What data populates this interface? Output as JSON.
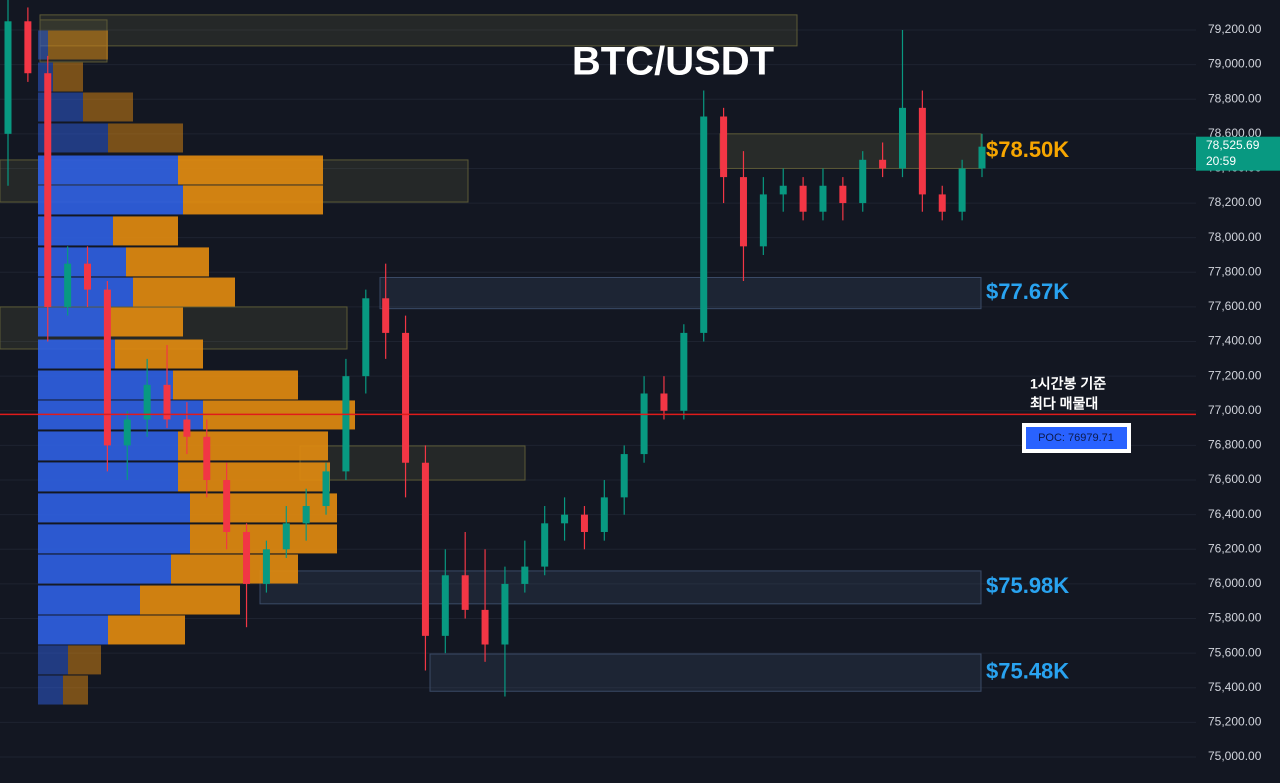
{
  "chart_data": {
    "type": "candlestick",
    "title": "BTC/USDT",
    "open": [
      78600,
      79250,
      78950,
      77600,
      77850,
      77700,
      76800,
      76950,
      77150,
      76950,
      76850,
      76600,
      76300,
      76000,
      76200,
      76350,
      76450,
      76650,
      77200,
      77650,
      77450,
      76700,
      75700,
      76050,
      75850,
      75650,
      76000,
      76100,
      76350,
      76400,
      76300,
      76500,
      76750,
      77100,
      77000,
      77450,
      78700,
      78350,
      77950,
      78250,
      78300,
      78150,
      78300,
      78200,
      78450,
      78400,
      78750,
      78250,
      78150,
      78400
    ],
    "high": [
      79380,
      79330,
      79050,
      77950,
      77950,
      77750,
      77000,
      77300,
      77380,
      77050,
      76950,
      76700,
      76350,
      76250,
      76450,
      76550,
      76700,
      77300,
      77700,
      77850,
      77550,
      76800,
      76200,
      76300,
      76200,
      76100,
      76250,
      76450,
      76500,
      76450,
      76600,
      76800,
      77200,
      77200,
      77500,
      78850,
      78750,
      78500,
      78350,
      78400,
      78350,
      78400,
      78350,
      78500,
      78550,
      79200,
      78850,
      78300,
      78450,
      78600
    ],
    "low": [
      78300,
      78900,
      77400,
      77550,
      77600,
      76650,
      76600,
      76850,
      76900,
      76750,
      76500,
      76200,
      75750,
      75950,
      76150,
      76250,
      76400,
      76600,
      77100,
      77300,
      76500,
      75500,
      75600,
      75800,
      75550,
      75350,
      75950,
      76050,
      76250,
      76200,
      76250,
      76400,
      76700,
      76950,
      76950,
      77400,
      78200,
      77750,
      77900,
      78150,
      78100,
      78100,
      78100,
      78150,
      78350,
      78350,
      78150,
      78100,
      78100,
      78350
    ],
    "close": [
      79250,
      78950,
      77600,
      77850,
      77700,
      76800,
      76950,
      77150,
      76950,
      76850,
      76600,
      76300,
      76000,
      76200,
      76350,
      76450,
      76650,
      77200,
      77650,
      77450,
      76700,
      75700,
      76050,
      75850,
      75650,
      76000,
      76100,
      76350,
      76400,
      76300,
      76500,
      76750,
      77100,
      77000,
      77450,
      78700,
      78350,
      77950,
      78250,
      78300,
      78150,
      78300,
      78200,
      78450,
      78400,
      78750,
      78250,
      78150,
      78400,
      78525.69
    ],
    "up_color": "#089981",
    "down_color": "#f23645",
    "ylim": [
      74850,
      79373
    ],
    "yticks": [
      {
        "value": 75000,
        "label": "75,000.00"
      },
      {
        "value": 75200,
        "label": "75,200.00"
      },
      {
        "value": 75400,
        "label": "75,400.00"
      },
      {
        "value": 75600,
        "label": "75,600.00"
      },
      {
        "value": 75800,
        "label": "75,800.00"
      },
      {
        "value": 76000,
        "label": "76,000.00"
      },
      {
        "value": 76200,
        "label": "76,200.00"
      },
      {
        "value": 76400,
        "label": "76,400.00"
      },
      {
        "value": 76600,
        "label": "76,600.00"
      },
      {
        "value": 76800,
        "label": "76,800.00"
      },
      {
        "value": 77000,
        "label": "77,000.00"
      },
      {
        "value": 77200,
        "label": "77,200.00"
      },
      {
        "value": 77400,
        "label": "77,400.00"
      },
      {
        "value": 77600,
        "label": "77,600.00"
      },
      {
        "value": 77800,
        "label": "77,800.00"
      },
      {
        "value": 78000,
        "label": "78,000.00"
      },
      {
        "value": 78200,
        "label": "78,200.00"
      },
      {
        "value": 78400,
        "label": "78,400.00"
      },
      {
        "value": 78600,
        "label": "78,600.00"
      },
      {
        "value": 78800,
        "label": "78,800.00"
      },
      {
        "value": 79000,
        "label": "79,000.00"
      },
      {
        "value": 79200,
        "label": "79,200.00"
      }
    ],
    "grid": true,
    "last_price": {
      "value": 78525.69,
      "label": "78,525.69"
    },
    "countdown": "20:59",
    "zones": [
      {
        "label": "$78.50K",
        "low": 78400,
        "high": 78600,
        "color": "#f7a600"
      },
      {
        "label": "$77.67K",
        "low": 77590,
        "high": 77770,
        "color": "#29a3f0"
      },
      {
        "label": "$75.98K",
        "low": 75885,
        "high": 76075,
        "color": "#29a3f0"
      },
      {
        "label": "$75.48K",
        "low": 75380,
        "high": 75595,
        "color": "#29a3f0"
      }
    ],
    "extra_zones": [
      {
        "low": 79108,
        "high": 79287
      },
      {
        "low": 78206,
        "high": 78449
      },
      {
        "low": 77357,
        "high": 77600
      },
      {
        "low": 76600,
        "high": 76797
      },
      {
        "low": 79015,
        "high": 79258
      }
    ],
    "poc": {
      "value": 76979.71,
      "label": "POC: 76979.71"
    },
    "annotation": [
      "1시간봉 기준",
      "최다 매물대"
    ],
    "volume_profile": {
      "prices": [
        79113,
        78928,
        78755,
        78576,
        78391,
        78218,
        78039,
        77860,
        77686,
        77513,
        77328,
        77149,
        76976,
        76797,
        76618,
        76439,
        76260,
        76086,
        75907,
        75734,
        75561,
        75387
      ],
      "buy_volume": [
        10,
        15,
        45,
        70,
        140,
        145,
        75,
        88,
        95,
        70,
        77,
        135,
        165,
        140,
        140,
        152,
        152,
        133,
        102,
        70,
        30,
        25
      ],
      "sell_volume": [
        60,
        30,
        50,
        75,
        145,
        140,
        65,
        83,
        102,
        75,
        88,
        125,
        152,
        150,
        152,
        147,
        147,
        127,
        100,
        77,
        33,
        25
      ],
      "buy_color": "#2f5fe0",
      "sell_color": "#e08a10"
    }
  }
}
